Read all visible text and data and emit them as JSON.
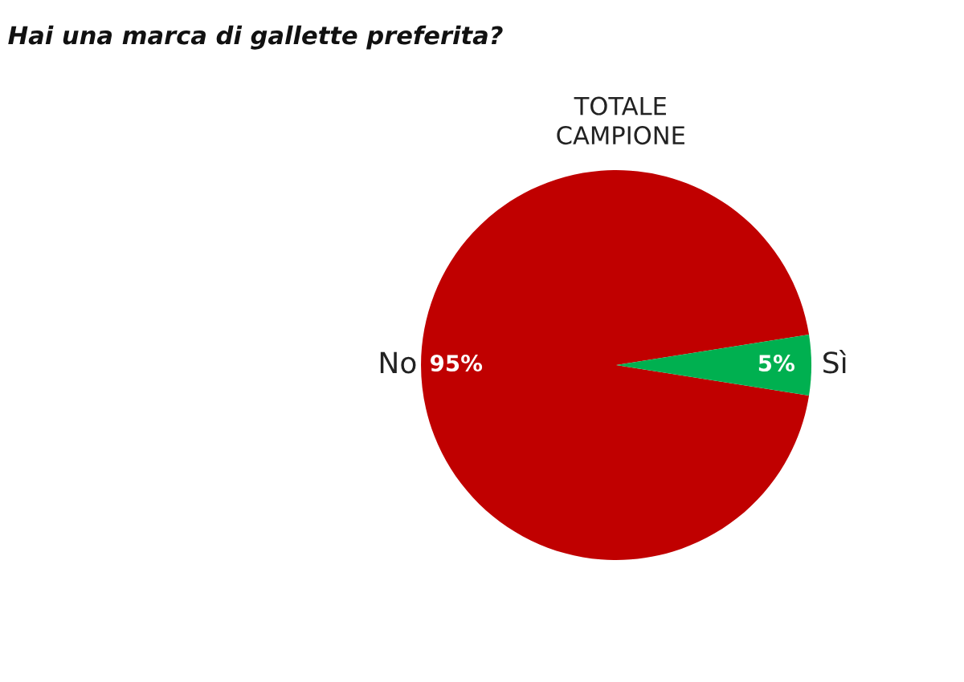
{
  "chart_data": {
    "type": "pie",
    "title": "Hai una marca di gallette preferita?",
    "subtitle": "TOTALE\nCAMPIONE",
    "categories": [
      "No",
      "Sì"
    ],
    "values": [
      95,
      5
    ],
    "colors": [
      "#c00000",
      "#00b050"
    ],
    "value_labels": [
      "95%",
      "5%"
    ],
    "legend": false
  }
}
